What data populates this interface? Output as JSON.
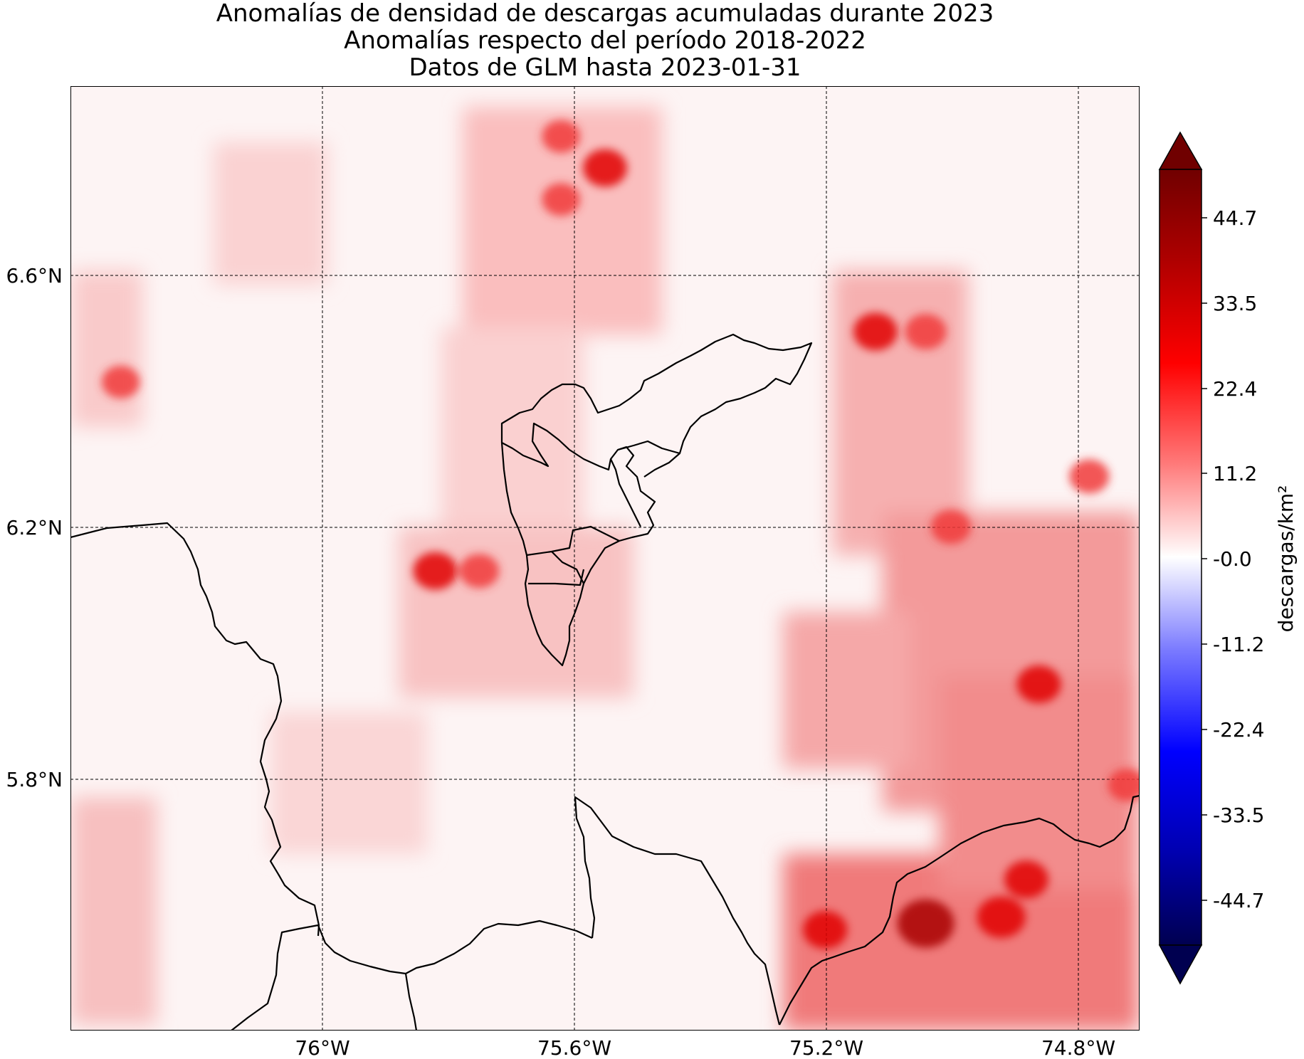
{
  "title": {
    "line1": "Anomalías de densidad de descargas acumuladas durante 2023",
    "line2": "Anomalías respecto del período 2018-2022",
    "line3": "Datos de GLM hasta 2023-01-31"
  },
  "map": {
    "lon_labels": [
      "76°W",
      "75.6°W",
      "75.2°W",
      "74.8°W"
    ],
    "lat_labels": [
      "6.6°N",
      "6.2°N",
      "5.8°N"
    ],
    "lon_range": [
      -76.4,
      -74.7
    ],
    "lat_range": [
      5.4,
      6.9
    ],
    "gridlines": "dashed",
    "field_colors": {
      "positive": "#e60000",
      "zero": "#ffffff",
      "negative": "#0000ff"
    }
  },
  "colorbar": {
    "label": "descargas/km²",
    "ticks": [
      "44.7",
      "33.5",
      "22.4",
      "11.2",
      "-0.0",
      "-11.2",
      "-22.4",
      "-33.5",
      "-44.7"
    ],
    "colors": [
      "#700000",
      "#c40000",
      "#ff1a1a",
      "#ff8080",
      "#ffffff",
      "#8080ff",
      "#1a1aff",
      "#0000c4",
      "#000050"
    ]
  },
  "anomaly_hotspots": [
    {
      "lon": -75.55,
      "lat": 6.77,
      "value": 25
    },
    {
      "lon": -75.62,
      "lat": 6.82,
      "value": 18
    },
    {
      "lon": -75.62,
      "lat": 6.72,
      "value": 18
    },
    {
      "lon": -75.12,
      "lat": 6.51,
      "value": 25
    },
    {
      "lon": -75.04,
      "lat": 6.51,
      "value": 22
    },
    {
      "lon": -75.82,
      "lat": 6.13,
      "value": 25
    },
    {
      "lon": -75.75,
      "lat": 6.13,
      "value": 20
    },
    {
      "lon": -76.32,
      "lat": 6.43,
      "value": 18
    },
    {
      "lon": -74.78,
      "lat": 6.28,
      "value": 20
    },
    {
      "lon": -75.04,
      "lat": 5.57,
      "value": 40
    },
    {
      "lon": -74.92,
      "lat": 5.58,
      "value": 30
    },
    {
      "lon": -74.88,
      "lat": 5.64,
      "value": 25
    },
    {
      "lon": -74.86,
      "lat": 5.95,
      "value": 25
    },
    {
      "lon": -75.2,
      "lat": 5.56,
      "value": 25
    },
    {
      "lon": -74.72,
      "lat": 5.79,
      "value": 18
    },
    {
      "lon": -75.0,
      "lat": 6.2,
      "value": 20
    }
  ]
}
